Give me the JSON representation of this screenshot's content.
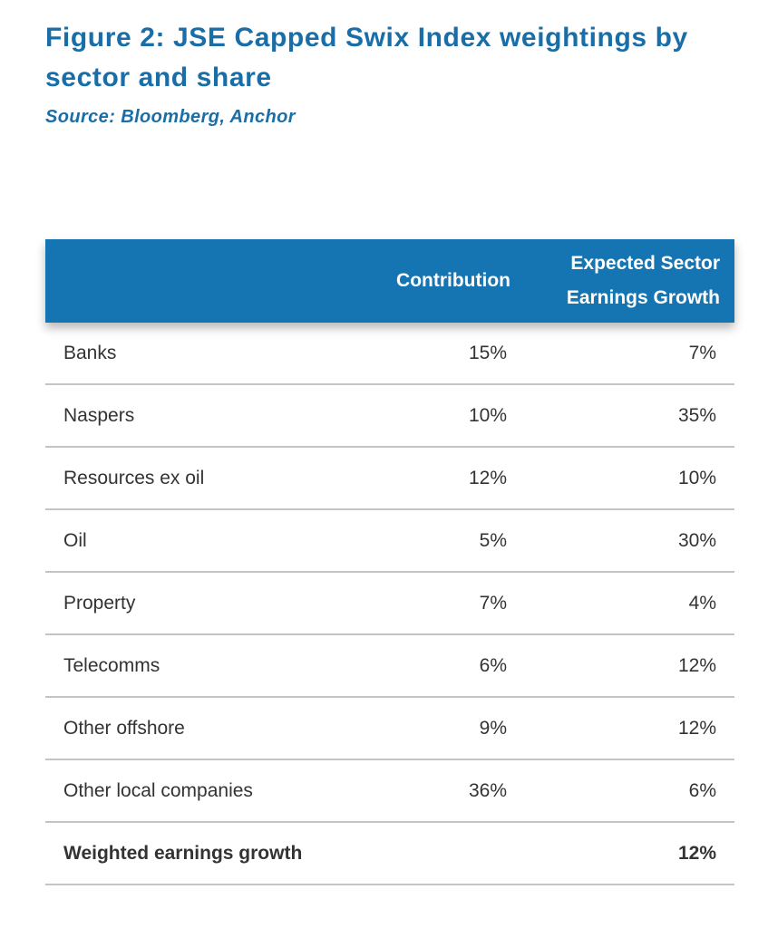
{
  "chart_data": {
    "type": "table",
    "title": "Figure 2: JSE Capped Swix Index weightings by sector and share",
    "source": "Source: Bloomberg, Anchor",
    "columns": [
      "",
      "Contribution",
      "Expected Sector Earnings Growth"
    ],
    "header_lines": {
      "contribution": "Contribution",
      "growth_line1": "Expected Sector",
      "growth_line2": "Earnings Growth"
    },
    "rows": [
      {
        "label": "Banks",
        "contribution": "15%",
        "growth": "7%"
      },
      {
        "label": "Naspers",
        "contribution": "10%",
        "growth": "35%"
      },
      {
        "label": "Resources ex oil",
        "contribution": "12%",
        "growth": "10%"
      },
      {
        "label": "Oil",
        "contribution": "5%",
        "growth": "30%"
      },
      {
        "label": "Property",
        "contribution": "7%",
        "growth": "4%"
      },
      {
        "label": "Telecomms",
        "contribution": "6%",
        "growth": "12%"
      },
      {
        "label": "Other offshore",
        "contribution": "9%",
        "growth": "12%"
      },
      {
        "label": "Other local companies",
        "contribution": "36%",
        "growth": "6%"
      }
    ],
    "total": {
      "label": "Weighted earnings growth",
      "contribution": "",
      "growth": "12%"
    }
  },
  "colors": {
    "title": "#1a6ea8",
    "header_bg": "#1575b2",
    "row_text": "#333333",
    "divider": "#c4c4c4"
  }
}
